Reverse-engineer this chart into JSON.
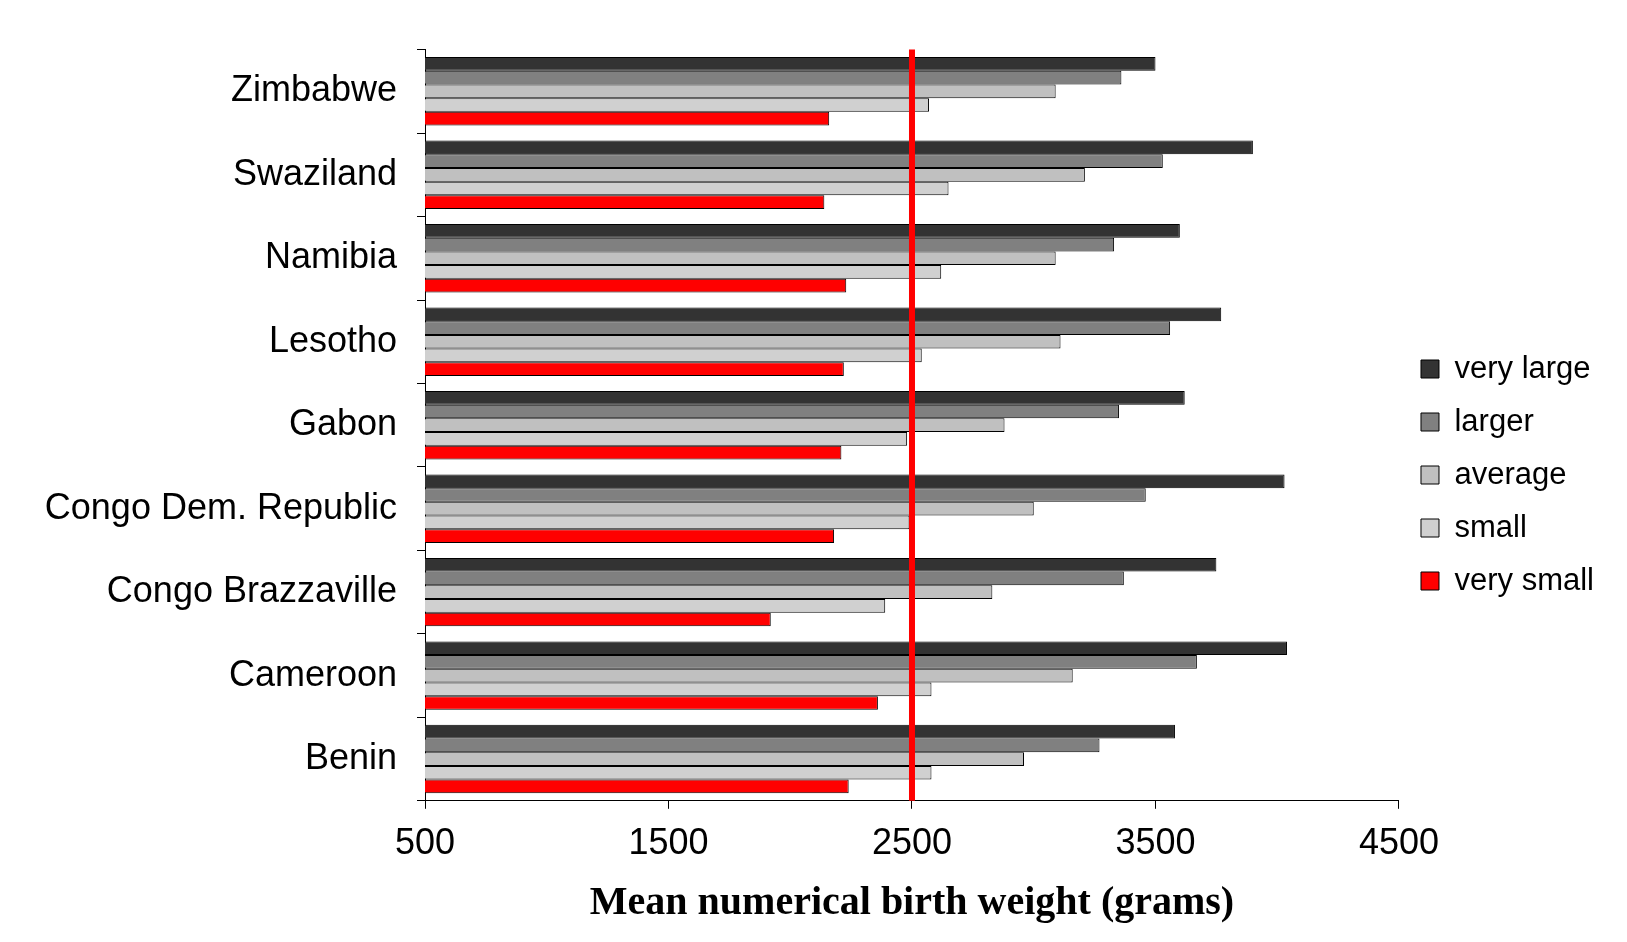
{
  "chart_data": {
    "type": "bar",
    "orientation": "horizontal",
    "xlabel": "Mean numerical birth weight (grams)",
    "categories": [
      "Zimbabwe",
      "Swaziland",
      "Namibia",
      "Lesotho",
      "Gabon",
      "Congo Dem. Republic",
      "Congo Brazzaville",
      "Cameroon",
      "Benin"
    ],
    "series": [
      {
        "name": "very large",
        "color": "#333333",
        "values": [
          3500,
          3900,
          3600,
          3770,
          3620,
          4030,
          3750,
          4040,
          3580
        ]
      },
      {
        "name": "larger",
        "color": "#808080",
        "values": [
          3360,
          3530,
          3330,
          3560,
          3350,
          3460,
          3370,
          3670,
          3270
        ]
      },
      {
        "name": "average",
        "color": "#c0c0c0",
        "values": [
          3090,
          3210,
          3090,
          3110,
          2880,
          3000,
          2830,
          3160,
          2960
        ]
      },
      {
        "name": "small",
        "color": "#d0d0d0",
        "values": [
          2570,
          2650,
          2620,
          2540,
          2480,
          2490,
          2390,
          2580,
          2580
        ]
      },
      {
        "name": "very small",
        "color": "#ff0000",
        "values": [
          2160,
          2140,
          2230,
          2220,
          2210,
          2180,
          1920,
          2360,
          2240
        ]
      }
    ],
    "xlim": [
      500,
      4500
    ],
    "xticks": [
      500,
      1500,
      2500,
      3500,
      4500
    ],
    "ref_lines": [
      {
        "axis": "x",
        "value": 2500,
        "color": "#ff0000"
      }
    ],
    "legend": "right",
    "grid": false
  }
}
